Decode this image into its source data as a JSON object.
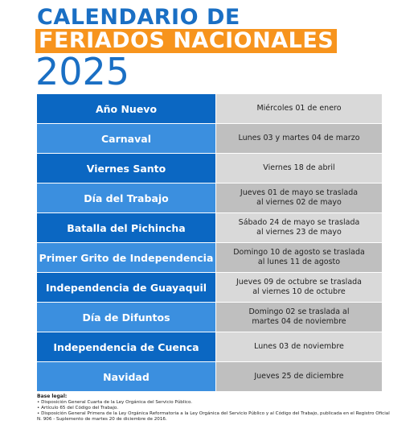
{
  "header": {
    "line1": "CALENDARIO DE",
    "line2": "FERIADOS NACIONALES",
    "line3": "2025"
  },
  "table": {
    "rows": [
      {
        "holiday": "Año Nuevo",
        "date": [
          "Miércoles 01 de enero"
        ]
      },
      {
        "holiday": "Carnaval",
        "date": [
          "Lunes 03 y martes 04 de marzo"
        ]
      },
      {
        "holiday": "Viernes Santo",
        "date": [
          "Viernes 18 de abril"
        ]
      },
      {
        "holiday": "Día del Trabajo",
        "date": [
          "Jueves 01 de mayo se traslada",
          "al viernes 02 de mayo"
        ]
      },
      {
        "holiday": "Batalla del Pichincha",
        "date": [
          "Sábado 24 de mayo se traslada",
          "al viernes 23 de mayo"
        ]
      },
      {
        "holiday": "Primer Grito de Independencia",
        "date": [
          "Domingo 10 de agosto se traslada",
          "al lunes 11 de agosto"
        ]
      },
      {
        "holiday": "Independencia de Guayaquil",
        "date": [
          "Jueves 09 de octubre se traslada",
          "al viernes 10 de octubre"
        ]
      },
      {
        "holiday": "Día de Difuntos",
        "date": [
          "Domingo 02 se traslada al",
          "martes 04 de noviembre"
        ]
      },
      {
        "holiday": "Independencia de Cuenca",
        "date": [
          "Lunes 03 de noviembre"
        ]
      },
      {
        "holiday": "Navidad",
        "date": [
          "Jueves 25 de diciembre"
        ]
      }
    ]
  },
  "footer": {
    "title": "Base legal:",
    "notes": [
      "• Disposición General Cuarta de la Ley Orgánica del Servicio Público.",
      "• Artículo 65 del Código del Trabajo.",
      "• Disposición General Primera de la  Ley Orgánica Reformatoria a la Ley Orgánica del Servicio Público y al Código del Trabajo, publicada en el Registro Oficial N. 906 - Suplemento de martes 20 de diciembre de 2016."
    ]
  }
}
